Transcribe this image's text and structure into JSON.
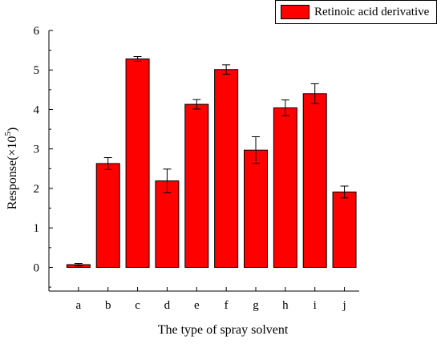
{
  "chart_data": {
    "type": "bar",
    "title": "",
    "xlabel": "The type of spray solvent",
    "ylabel_main": "Response(×10",
    "ylabel_exp": "5",
    "ylabel_close": ")",
    "ylim": [
      -0.6,
      6
    ],
    "yticks": [
      0,
      1,
      2,
      3,
      4,
      5,
      6
    ],
    "categories": [
      "a",
      "b",
      "c",
      "d",
      "e",
      "f",
      "g",
      "h",
      "i",
      "j"
    ],
    "series": [
      {
        "name": "Retinoic acid derivative",
        "color": "#ff0000",
        "values": [
          0.07,
          2.63,
          5.28,
          2.19,
          4.13,
          5.01,
          2.97,
          4.04,
          4.4,
          1.91
        ],
        "errors": [
          0.03,
          0.15,
          0.06,
          0.3,
          0.12,
          0.12,
          0.34,
          0.2,
          0.25,
          0.15
        ]
      }
    ],
    "legend_position": "top-right"
  }
}
